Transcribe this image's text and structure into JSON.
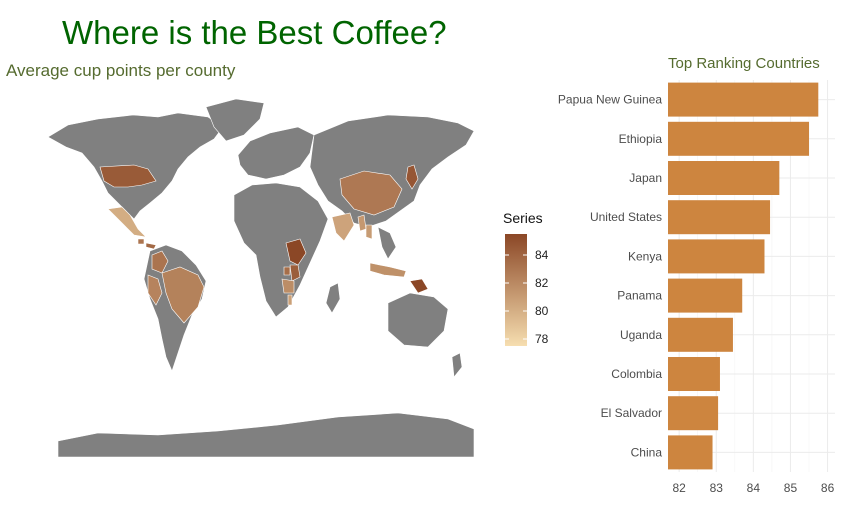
{
  "title": "Where is the Best Coffee?",
  "subtitle": "Average cup points per county",
  "colors": {
    "title": "#006400",
    "subtitle": "#556B2F",
    "bar": "#CD853F",
    "land": "#808080",
    "gradient_low": "#F6DEB0",
    "gradient_high": "#8B4726"
  },
  "legend": {
    "title": "Series",
    "ticks": [
      84,
      82,
      80,
      78
    ],
    "range": [
      77.5,
      85.5
    ]
  },
  "chart_data": [
    {
      "type": "bar",
      "orientation": "horizontal",
      "title": "Top Ranking Countries",
      "categories": [
        "Papua New Guinea",
        "Ethiopia",
        "Japan",
        "United States",
        "Kenya",
        "Panama",
        "Uganda",
        "Colombia",
        "El Salvador",
        "China"
      ],
      "values": [
        85.75,
        85.5,
        84.7,
        84.45,
        84.3,
        83.7,
        83.45,
        83.1,
        83.05,
        82.9
      ],
      "xlim": [
        81.7,
        86.2
      ],
      "xticks": [
        82,
        83,
        84,
        85,
        86
      ],
      "grid": true
    },
    {
      "type": "choropleth",
      "title": "Average cup points per county",
      "legend_title": "Series",
      "scale_range": [
        77.5,
        85.5
      ],
      "regions": [
        {
          "name": "Papua New Guinea",
          "value": 85.75
        },
        {
          "name": "Ethiopia",
          "value": 85.5
        },
        {
          "name": "Japan",
          "value": 84.7
        },
        {
          "name": "United States",
          "value": 84.45
        },
        {
          "name": "Kenya",
          "value": 84.3
        },
        {
          "name": "Panama",
          "value": 83.7
        },
        {
          "name": "Uganda",
          "value": 83.45
        },
        {
          "name": "Colombia",
          "value": 83.1
        },
        {
          "name": "El Salvador",
          "value": 83.05
        },
        {
          "name": "China",
          "value": 82.9
        },
        {
          "name": "Brazil",
          "value": 82.4
        },
        {
          "name": "Peru",
          "value": 82.3
        },
        {
          "name": "Mexico",
          "value": 80.1
        },
        {
          "name": "India",
          "value": 80.6
        },
        {
          "name": "Indonesia",
          "value": 81.6
        },
        {
          "name": "Myanmar",
          "value": 81.2
        },
        {
          "name": "Thailand",
          "value": 81.0
        },
        {
          "name": "Tanzania",
          "value": 81.8
        },
        {
          "name": "Malawi",
          "value": 80.8
        }
      ]
    }
  ]
}
